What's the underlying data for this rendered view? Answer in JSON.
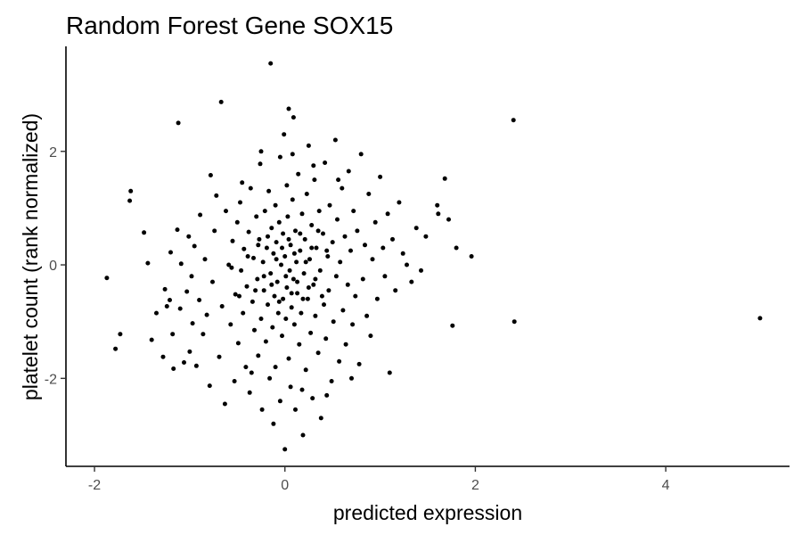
{
  "chart_data": {
    "type": "scatter",
    "title": "Random Forest Gene SOX15",
    "xlabel": "predicted expression",
    "ylabel": "platelet count (rank normalized)",
    "xlim": [
      -2.3,
      5.3
    ],
    "ylim": [
      -3.55,
      3.85
    ],
    "x_ticks": [
      -2,
      0,
      2,
      4
    ],
    "y_ticks": [
      -2,
      0,
      2
    ],
    "x_tick_labels": [
      "-2",
      "0",
      "2",
      "4"
    ],
    "y_tick_labels": [
      "-2",
      "0",
      "2"
    ],
    "grid": false,
    "legend": "none",
    "point_color": "#000000",
    "points": [
      [
        -1.87,
        -0.23
      ],
      [
        -1.78,
        -1.48
      ],
      [
        -1.73,
        -1.22
      ],
      [
        -1.62,
        1.3
      ],
      [
        -1.63,
        1.13
      ],
      [
        -1.48,
        0.57
      ],
      [
        -1.44,
        0.03
      ],
      [
        -1.4,
        -1.32
      ],
      [
        -1.35,
        -0.85
      ],
      [
        -1.28,
        -1.62
      ],
      [
        -1.26,
        -0.43
      ],
      [
        -1.24,
        -0.73
      ],
      [
        -1.21,
        -0.62
      ],
      [
        -1.2,
        0.22
      ],
      [
        -1.18,
        -1.22
      ],
      [
        -1.17,
        -1.83
      ],
      [
        -1.13,
        0.62
      ],
      [
        -1.12,
        2.5
      ],
      [
        -1.1,
        -0.77
      ],
      [
        -1.09,
        0.02
      ],
      [
        -1.06,
        -1.72
      ],
      [
        -1.03,
        -0.47
      ],
      [
        -1.01,
        0.5
      ],
      [
        -1.0,
        -1.53
      ],
      [
        -0.98,
        -0.2
      ],
      [
        -0.97,
        -1.03
      ],
      [
        -0.95,
        0.33
      ],
      [
        -0.93,
        -1.78
      ],
      [
        -0.9,
        -0.62
      ],
      [
        -0.89,
        0.88
      ],
      [
        -0.86,
        -1.22
      ],
      [
        -0.84,
        0.1
      ],
      [
        -0.82,
        -0.88
      ],
      [
        -0.79,
        -2.13
      ],
      [
        -0.78,
        1.58
      ],
      [
        -0.76,
        -0.3
      ],
      [
        -0.74,
        0.6
      ],
      [
        -0.72,
        1.22
      ],
      [
        -0.69,
        -1.62
      ],
      [
        -0.67,
        2.87
      ],
      [
        -0.66,
        -0.73
      ],
      [
        -0.63,
        -2.45
      ],
      [
        -0.62,
        0.95
      ],
      [
        -0.59,
        0.0
      ],
      [
        -0.57,
        -1.05
      ],
      [
        -0.55,
        0.42
      ],
      [
        -0.53,
        -2.05
      ],
      [
        -0.52,
        -0.52
      ],
      [
        -0.5,
        0.75
      ],
      [
        -0.49,
        -1.38
      ],
      [
        -0.47,
        1.1
      ],
      [
        -0.46,
        -0.1
      ],
      [
        -0.44,
        -0.85
      ],
      [
        -0.43,
        0.28
      ],
      [
        -0.41,
        -1.8
      ],
      [
        -0.4,
        -0.38
      ],
      [
        -0.38,
        0.58
      ],
      [
        -0.37,
        -2.25
      ],
      [
        -0.36,
        1.35
      ],
      [
        -0.34,
        -0.65
      ],
      [
        -0.33,
        0.12
      ],
      [
        -0.32,
        -1.15
      ],
      [
        -0.3,
        0.85
      ],
      [
        -0.29,
        -0.25
      ],
      [
        -0.28,
        -1.6
      ],
      [
        -0.27,
        0.45
      ],
      [
        -0.26,
        1.78
      ],
      [
        -0.25,
        -0.95
      ],
      [
        -0.24,
        -2.55
      ],
      [
        -0.23,
        0.05
      ],
      [
        -0.22,
        -0.45
      ],
      [
        -0.21,
        0.95
      ],
      [
        -0.2,
        -1.35
      ],
      [
        -0.19,
        0.3
      ],
      [
        -0.18,
        -0.7
      ],
      [
        -0.17,
        1.3
      ],
      [
        -0.16,
        -2.0
      ],
      [
        -0.15,
        3.55
      ],
      [
        -0.15,
        -0.15
      ],
      [
        -0.14,
        0.65
      ],
      [
        -0.13,
        -1.1
      ],
      [
        -0.12,
        0.2
      ],
      [
        -0.11,
        -0.55
      ],
      [
        -0.1,
        1.05
      ],
      [
        -0.1,
        -1.8
      ],
      [
        -0.09,
        0.4
      ],
      [
        -0.08,
        -0.3
      ],
      [
        -0.07,
        -0.85
      ],
      [
        -0.06,
        0.75
      ],
      [
        -0.05,
        -2.4
      ],
      [
        -0.05,
        1.9
      ],
      [
        -0.04,
        0.0
      ],
      [
        -0.03,
        -1.25
      ],
      [
        -0.02,
        0.55
      ],
      [
        -0.02,
        -0.6
      ],
      [
        -0.01,
        2.3
      ],
      [
        0.0,
        -3.25
      ],
      [
        0.0,
        0.15
      ],
      [
        0.01,
        -0.95
      ],
      [
        0.02,
        1.4
      ],
      [
        0.02,
        -0.4
      ],
      [
        0.03,
        0.85
      ],
      [
        0.04,
        -1.65
      ],
      [
        0.04,
        2.75
      ],
      [
        0.05,
        -0.1
      ],
      [
        0.06,
        0.35
      ],
      [
        0.06,
        -2.15
      ],
      [
        0.07,
        -0.75
      ],
      [
        0.08,
        1.15
      ],
      [
        0.09,
        -0.25
      ],
      [
        0.09,
        2.6
      ],
      [
        0.1,
        -1.05
      ],
      [
        0.11,
        0.6
      ],
      [
        0.11,
        -2.55
      ],
      [
        0.12,
        0.05
      ],
      [
        0.13,
        -0.5
      ],
      [
        0.14,
        1.6
      ],
      [
        0.15,
        -1.4
      ],
      [
        0.16,
        0.25
      ],
      [
        0.17,
        -0.85
      ],
      [
        0.18,
        0.9
      ],
      [
        0.19,
        -3.0
      ],
      [
        0.2,
        -0.15
      ],
      [
        0.21,
        0.45
      ],
      [
        0.22,
        -1.85
      ],
      [
        0.23,
        1.25
      ],
      [
        0.24,
        -0.6
      ],
      [
        0.25,
        2.1
      ],
      [
        0.26,
        0.1
      ],
      [
        0.27,
        -1.2
      ],
      [
        0.28,
        0.7
      ],
      [
        0.29,
        -2.35
      ],
      [
        0.3,
        -0.35
      ],
      [
        0.31,
        1.5
      ],
      [
        0.32,
        -0.9
      ],
      [
        0.33,
        0.3
      ],
      [
        0.35,
        -1.55
      ],
      [
        0.36,
        0.95
      ],
      [
        0.37,
        -0.1
      ],
      [
        0.38,
        -2.7
      ],
      [
        0.4,
        0.55
      ],
      [
        0.41,
        -0.7
      ],
      [
        0.42,
        1.8
      ],
      [
        0.43,
        -1.3
      ],
      [
        0.45,
        0.15
      ],
      [
        0.46,
        -0.45
      ],
      [
        0.47,
        1.05
      ],
      [
        0.49,
        -2.05
      ],
      [
        0.5,
        0.4
      ],
      [
        0.51,
        -1.0
      ],
      [
        0.53,
        2.2
      ],
      [
        0.54,
        -0.2
      ],
      [
        0.55,
        0.8
      ],
      [
        0.57,
        -1.7
      ],
      [
        0.58,
        0.05
      ],
      [
        0.6,
        1.35
      ],
      [
        0.61,
        -0.8
      ],
      [
        0.63,
        0.5
      ],
      [
        0.64,
        -1.4
      ],
      [
        0.66,
        -0.35
      ],
      [
        0.67,
        1.65
      ],
      [
        0.69,
        0.25
      ],
      [
        0.71,
        -1.05
      ],
      [
        0.72,
        0.95
      ],
      [
        0.74,
        -0.55
      ],
      [
        0.76,
        0.6
      ],
      [
        0.78,
        -1.75
      ],
      [
        0.8,
        1.95
      ],
      [
        0.82,
        -0.25
      ],
      [
        0.84,
        0.35
      ],
      [
        0.86,
        -0.9
      ],
      [
        0.88,
        1.25
      ],
      [
        0.9,
        -1.25
      ],
      [
        0.92,
        0.1
      ],
      [
        0.95,
        0.75
      ],
      [
        0.97,
        -0.6
      ],
      [
        1.0,
        1.55
      ],
      [
        1.03,
        0.3
      ],
      [
        1.05,
        -0.2
      ],
      [
        1.08,
        0.9
      ],
      [
        1.1,
        -1.9
      ],
      [
        1.13,
        0.45
      ],
      [
        1.16,
        -0.45
      ],
      [
        1.2,
        1.1
      ],
      [
        1.24,
        0.2
      ],
      [
        1.28,
        0.0
      ],
      [
        1.33,
        -0.3
      ],
      [
        1.38,
        0.65
      ],
      [
        1.43,
        -0.1
      ],
      [
        1.48,
        0.5
      ],
      [
        1.6,
        1.05
      ],
      [
        1.61,
        0.9
      ],
      [
        1.68,
        1.52
      ],
      [
        1.72,
        0.8
      ],
      [
        1.76,
        -1.07
      ],
      [
        1.8,
        0.3
      ],
      [
        1.96,
        0.15
      ],
      [
        2.4,
        2.55
      ],
      [
        2.41,
        -1.0
      ],
      [
        4.99,
        -0.94
      ],
      [
        -0.56,
        -0.05
      ],
      [
        -0.48,
        -0.55
      ],
      [
        -0.39,
        0.15
      ],
      [
        -0.31,
        -0.45
      ],
      [
        -0.28,
        0.35
      ],
      [
        -0.22,
        -0.2
      ],
      [
        -0.18,
        0.5
      ],
      [
        -0.14,
        -0.35
      ],
      [
        -0.09,
        0.1
      ],
      [
        -0.06,
        -0.65
      ],
      [
        -0.03,
        0.3
      ],
      [
        0.01,
        -0.2
      ],
      [
        0.04,
        0.45
      ],
      [
        0.07,
        -0.5
      ],
      [
        0.1,
        0.2
      ],
      [
        0.13,
        -0.3
      ],
      [
        0.16,
        0.55
      ],
      [
        0.19,
        -0.6
      ],
      [
        0.22,
        0.05
      ],
      [
        0.25,
        -0.4
      ],
      [
        0.28,
        0.3
      ],
      [
        0.32,
        -0.25
      ],
      [
        0.35,
        0.6
      ],
      [
        0.39,
        -0.55
      ],
      [
        0.44,
        0.25
      ],
      [
        -0.45,
        1.45
      ],
      [
        -0.35,
        -1.9
      ],
      [
        -0.25,
        2.0
      ],
      [
        -0.12,
        -2.8
      ],
      [
        0.08,
        1.95
      ],
      [
        0.18,
        -2.2
      ],
      [
        0.3,
        1.75
      ],
      [
        0.44,
        -2.3
      ],
      [
        0.56,
        1.5
      ],
      [
        0.7,
        -2.0
      ]
    ]
  }
}
